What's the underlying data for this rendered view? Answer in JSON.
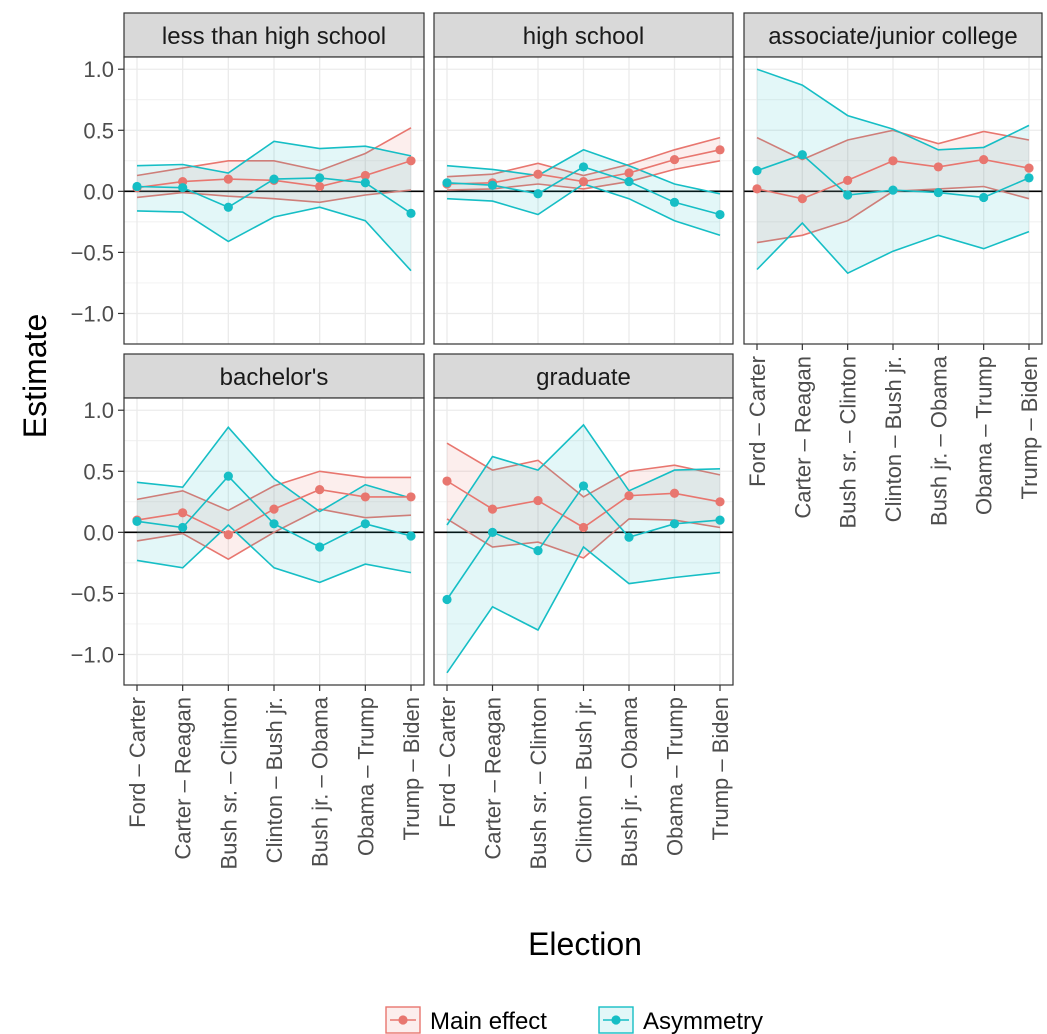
{
  "chart_data": {
    "type": "line",
    "xlabel": "Election",
    "ylabel": "Estimate",
    "ylim": [
      -1.25,
      1.1
    ],
    "yticks": [
      -1.0,
      -0.5,
      0.0,
      0.5,
      1.0
    ],
    "ytick_labels": [
      "−1.0",
      "−0.5",
      "0.0",
      "0.5",
      "1.0"
    ],
    "reference_line": 0,
    "grid": true,
    "legend_position": "bottom",
    "categories": [
      "Ford – Carter",
      "Carter – Reagan",
      "Bush sr. – Clinton",
      "Clinton – Bush jr.",
      "Bush jr. – Obama",
      "Obama – Trump",
      "Trump – Biden"
    ],
    "series_styles": [
      {
        "name": "Main effect",
        "color": "#E8766F"
      },
      {
        "name": "Asymmetry",
        "color": "#16BEC5"
      }
    ],
    "panels": [
      {
        "title": "less than high school",
        "series": [
          {
            "name": "Main effect",
            "values": [
              0.03,
              0.08,
              0.1,
              0.09,
              0.04,
              0.13,
              0.25
            ],
            "lower": [
              -0.05,
              -0.01,
              -0.04,
              -0.06,
              -0.09,
              -0.03,
              0.01
            ],
            "upper": [
              0.13,
              0.19,
              0.25,
              0.25,
              0.17,
              0.31,
              0.52
            ]
          },
          {
            "name": "Asymmetry",
            "values": [
              0.04,
              0.03,
              -0.13,
              0.1,
              0.11,
              0.07,
              -0.18
            ],
            "lower": [
              -0.16,
              -0.17,
              -0.41,
              -0.21,
              -0.13,
              -0.24,
              -0.65
            ],
            "upper": [
              0.21,
              0.22,
              0.15,
              0.41,
              0.35,
              0.37,
              0.29
            ]
          }
        ]
      },
      {
        "title": "high school",
        "series": [
          {
            "name": "Main effect",
            "values": [
              0.06,
              0.07,
              0.14,
              0.08,
              0.15,
              0.26,
              0.34
            ],
            "lower": [
              0.01,
              0.02,
              0.06,
              0.02,
              0.08,
              0.18,
              0.25
            ],
            "upper": [
              0.12,
              0.14,
              0.23,
              0.13,
              0.22,
              0.34,
              0.44
            ]
          },
          {
            "name": "Asymmetry",
            "values": [
              0.07,
              0.05,
              -0.02,
              0.2,
              0.08,
              -0.09,
              -0.19
            ],
            "lower": [
              -0.06,
              -0.08,
              -0.19,
              0.06,
              -0.06,
              -0.24,
              -0.36
            ],
            "upper": [
              0.21,
              0.18,
              0.13,
              0.34,
              0.21,
              0.06,
              -0.02
            ]
          }
        ]
      },
      {
        "title": "associate/junior college",
        "series": [
          {
            "name": "Main effect",
            "values": [
              0.02,
              -0.06,
              0.09,
              0.25,
              0.2,
              0.26,
              0.19
            ],
            "lower": [
              -0.42,
              -0.36,
              -0.24,
              0.0,
              0.02,
              0.04,
              -0.06
            ],
            "upper": [
              0.44,
              0.26,
              0.42,
              0.5,
              0.39,
              0.49,
              0.42
            ]
          },
          {
            "name": "Asymmetry",
            "values": [
              0.17,
              0.3,
              -0.03,
              0.01,
              -0.01,
              -0.05,
              0.11
            ],
            "lower": [
              -0.64,
              -0.26,
              -0.67,
              -0.49,
              -0.36,
              -0.47,
              -0.33
            ],
            "upper": [
              1.0,
              0.87,
              0.62,
              0.51,
              0.34,
              0.36,
              0.54
            ]
          }
        ]
      },
      {
        "title": "bachelor's",
        "series": [
          {
            "name": "Main effect",
            "values": [
              0.1,
              0.16,
              -0.02,
              0.19,
              0.35,
              0.29,
              0.29
            ],
            "lower": [
              -0.07,
              -0.01,
              -0.22,
              0.0,
              0.19,
              0.12,
              0.14
            ],
            "upper": [
              0.27,
              0.34,
              0.18,
              0.38,
              0.5,
              0.45,
              0.45
            ]
          },
          {
            "name": "Asymmetry",
            "values": [
              0.09,
              0.04,
              0.46,
              0.07,
              -0.12,
              0.07,
              -0.03
            ],
            "lower": [
              -0.23,
              -0.29,
              0.06,
              -0.29,
              -0.41,
              -0.26,
              -0.33
            ],
            "upper": [
              0.41,
              0.37,
              0.86,
              0.44,
              0.17,
              0.39,
              0.28
            ]
          }
        ]
      },
      {
        "title": "graduate",
        "series": [
          {
            "name": "Main effect",
            "values": [
              0.42,
              0.19,
              0.26,
              0.04,
              0.3,
              0.32,
              0.25
            ],
            "lower": [
              0.11,
              -0.12,
              -0.08,
              -0.21,
              0.11,
              0.1,
              0.04
            ],
            "upper": [
              0.73,
              0.51,
              0.59,
              0.29,
              0.5,
              0.55,
              0.47
            ]
          },
          {
            "name": "Asymmetry",
            "values": [
              -0.55,
              0.0,
              -0.15,
              0.38,
              -0.04,
              0.07,
              0.1
            ],
            "lower": [
              -1.15,
              -0.61,
              -0.8,
              -0.12,
              -0.42,
              -0.37,
              -0.33
            ],
            "upper": [
              0.06,
              0.62,
              0.51,
              0.88,
              0.34,
              0.51,
              0.52
            ]
          }
        ]
      }
    ]
  }
}
